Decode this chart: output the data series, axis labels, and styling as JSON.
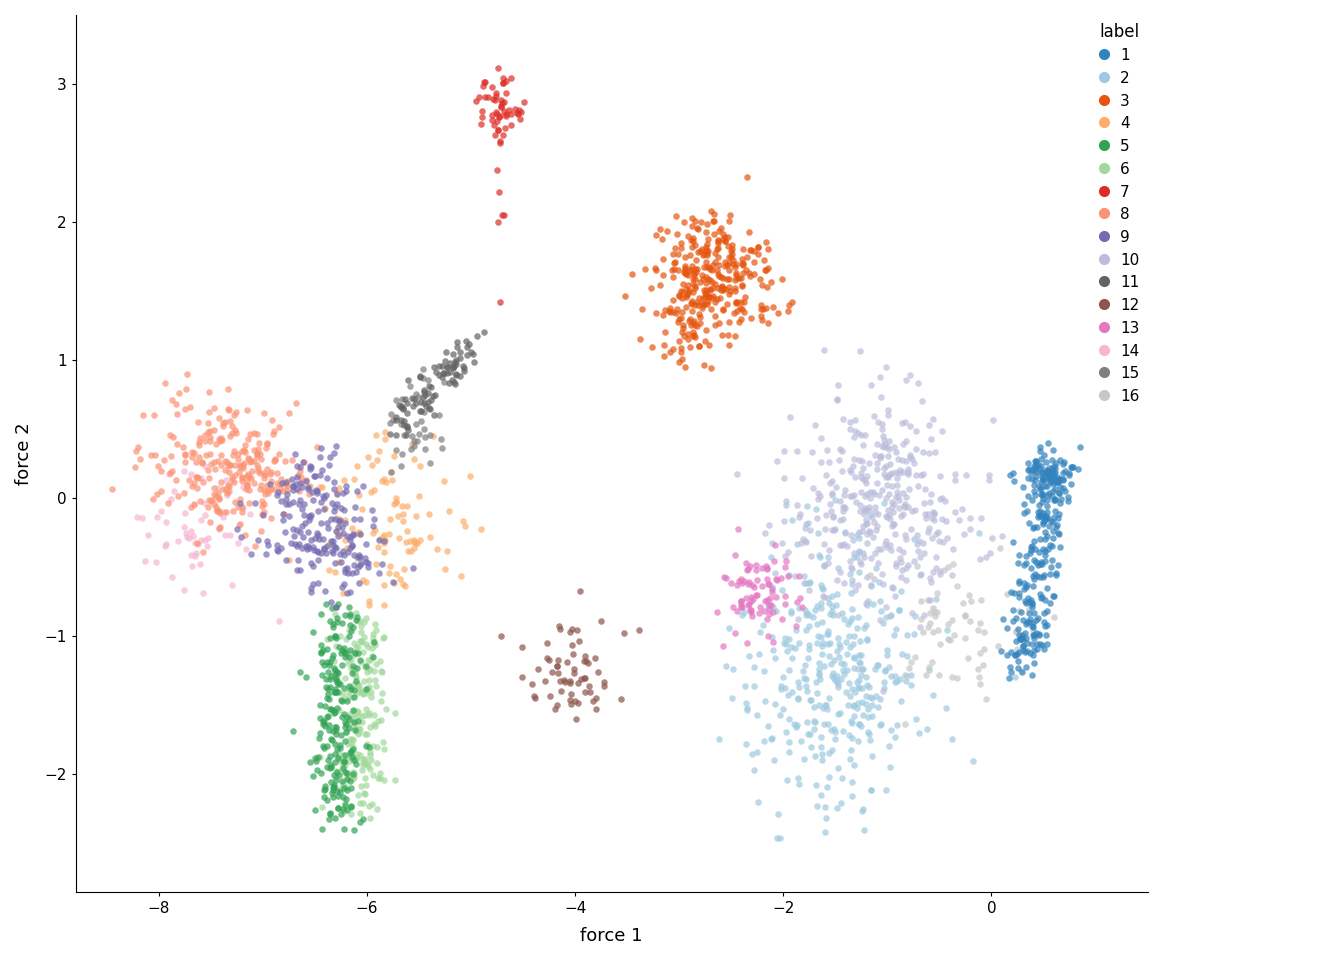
{
  "title": "",
  "xlabel": "force 1",
  "ylabel": "force 2",
  "xlim": [
    -8.8,
    1.5
  ],
  "ylim": [
    -2.85,
    3.5
  ],
  "xticks": [
    -8,
    -6,
    -4,
    -2,
    0
  ],
  "yticks": [
    -2,
    -1,
    0,
    1,
    2,
    3
  ],
  "legend_title": "label",
  "colors": {
    "1": "#3182bd",
    "2": "#9ecae1",
    "3": "#e6550d",
    "4": "#fdae6b",
    "5": "#31a354",
    "6": "#a1d99b",
    "7": "#de2d26",
    "8": "#fc9272",
    "9": "#756bb1",
    "10": "#bcbddc",
    "11": "#636363",
    "12": "#8c564b",
    "13": "#e377c2",
    "14": "#f7b6d2",
    "15": "#7f7f7f",
    "16": "#c7c7c7"
  },
  "point_size": 22,
  "alpha": 0.7,
  "background_color": "#ffffff",
  "legend_fontsize": 11,
  "axis_fontsize": 13
}
